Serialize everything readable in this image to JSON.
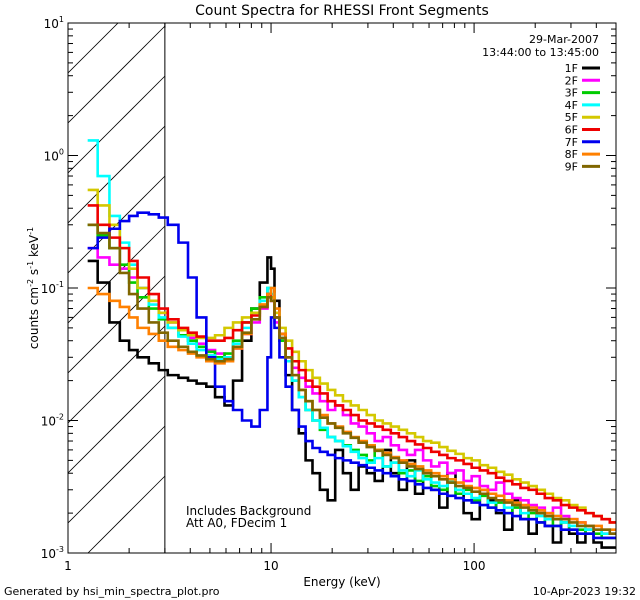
{
  "chart_data": {
    "type": "line",
    "title": "Count Spectra for RHESSI Front Segments",
    "xlabel": "Energy (keV)",
    "ylabel_parts": [
      "counts cm",
      "-2",
      " s",
      "-1",
      " keV",
      "-1"
    ],
    "xscale": "log",
    "yscale": "log",
    "xlim": [
      1,
      500
    ],
    "ylim": [
      0.001,
      10
    ],
    "x_ticks": [
      {
        "value": 1,
        "label": "1"
      },
      {
        "value": 10,
        "label": "10"
      },
      {
        "value": 100,
        "label": "100"
      }
    ],
    "y_ticks": [
      {
        "value": 10,
        "base": "10",
        "exp": "1"
      },
      {
        "value": 1,
        "base": "10",
        "exp": "0"
      },
      {
        "value": 0.1,
        "base": "10",
        "exp": "-1"
      },
      {
        "value": 0.01,
        "base": "10",
        "exp": "-2"
      },
      {
        "value": 0.001,
        "base": "10",
        "exp": "-3"
      }
    ],
    "date": "29-Mar-2007",
    "time_range": "13:44:00 to 13:45:00",
    "excluded_region_max_kev": 3,
    "annotations": [
      "Includes Background",
      "Att A0, FDecim 1"
    ],
    "energy_edges": [
      1.25,
      1.4,
      1.6,
      1.8,
      2.0,
      2.2,
      2.5,
      2.8,
      3.1,
      3.5,
      3.9,
      4.3,
      4.8,
      5.3,
      5.9,
      6.5,
      7.2,
      8.0,
      8.8,
      9.6,
      10.0,
      10.4,
      11.0,
      11.8,
      12.7,
      13.7,
      14.8,
      16.0,
      17.4,
      19.0,
      20.7,
      22.6,
      24.7,
      27.0,
      29.6,
      32.4,
      35.5,
      38.9,
      42.6,
      46.7,
      51.2,
      56.1,
      61.5,
      67.4,
      73.9,
      81.0,
      88.8,
      97.3,
      106.7,
      117.0,
      128.3,
      140.7,
      154.3,
      169.2,
      185.5,
      203.4,
      223.0,
      244.5,
      268.1,
      294.0,
      322.4,
      353.5,
      387.6,
      425.0,
      466.0,
      511.0
    ],
    "series": [
      {
        "name": "1F",
        "color": "#000000",
        "values": [
          0.16,
          0.11,
          0.055,
          0.04,
          0.034,
          0.03,
          0.027,
          0.024,
          0.022,
          0.021,
          0.02,
          0.019,
          0.018,
          0.015,
          0.013,
          0.02,
          0.04,
          0.07,
          0.11,
          0.17,
          0.14,
          0.08,
          0.045,
          0.022,
          0.012,
          0.008,
          0.005,
          0.004,
          0.003,
          0.0025,
          0.006,
          0.004,
          0.003,
          0.0045,
          0.004,
          0.0035,
          0.006,
          0.004,
          0.003,
          0.005,
          0.0028,
          0.004,
          0.003,
          0.0022,
          0.004,
          0.003,
          0.002,
          0.0018,
          0.003,
          0.0025,
          0.002,
          0.0015,
          0.0025,
          0.0018,
          0.0014,
          0.002,
          0.0016,
          0.0012,
          0.0018,
          0.0014,
          0.0012,
          0.0015,
          0.0012,
          0.0011,
          0.0011
        ]
      },
      {
        "name": "2F",
        "color": "#ff00ff",
        "values": [
          0.2,
          0.17,
          0.15,
          0.14,
          0.12,
          0.1,
          0.08,
          0.065,
          0.055,
          0.048,
          0.042,
          0.038,
          0.034,
          0.032,
          0.03,
          0.035,
          0.045,
          0.055,
          0.07,
          0.09,
          0.08,
          0.055,
          0.04,
          0.03,
          0.025,
          0.021,
          0.018,
          0.016,
          0.014,
          0.012,
          0.013,
          0.011,
          0.0095,
          0.009,
          0.008,
          0.007,
          0.0075,
          0.0065,
          0.006,
          0.0055,
          0.006,
          0.005,
          0.0045,
          0.0048,
          0.004,
          0.0042,
          0.0035,
          0.0038,
          0.0032,
          0.003,
          0.0034,
          0.0028,
          0.0026,
          0.0025,
          0.0023,
          0.0022,
          0.002,
          0.0022,
          0.0019,
          0.0018,
          0.0017,
          0.0016,
          0.0015,
          0.0014,
          0.0014
        ]
      },
      {
        "name": "3F",
        "color": "#00cc00",
        "values": [
          0.3,
          0.25,
          0.2,
          0.15,
          0.11,
          0.085,
          0.07,
          0.058,
          0.05,
          0.044,
          0.04,
          0.036,
          0.033,
          0.03,
          0.032,
          0.04,
          0.055,
          0.07,
          0.085,
          0.1,
          0.085,
          0.06,
          0.04,
          0.028,
          0.02,
          0.015,
          0.012,
          0.01,
          0.0085,
          0.0075,
          0.007,
          0.0065,
          0.006,
          0.0055,
          0.005,
          0.006,
          0.0045,
          0.0048,
          0.004,
          0.0042,
          0.0035,
          0.0038,
          0.0032,
          0.003,
          0.0034,
          0.0028,
          0.003,
          0.0025,
          0.0027,
          0.0022,
          0.0024,
          0.002,
          0.0022,
          0.0018,
          0.002,
          0.0017,
          0.0018,
          0.0016,
          0.0017,
          0.0015,
          0.0015,
          0.0014,
          0.0014,
          0.0013,
          0.0013
        ]
      },
      {
        "name": "4F",
        "color": "#00ffff",
        "values": [
          1.3,
          0.7,
          0.35,
          0.22,
          0.15,
          0.1,
          0.075,
          0.06,
          0.05,
          0.043,
          0.038,
          0.034,
          0.031,
          0.029,
          0.03,
          0.038,
          0.05,
          0.065,
          0.08,
          0.1,
          0.09,
          0.065,
          0.042,
          0.028,
          0.02,
          0.015,
          0.012,
          0.01,
          0.0088,
          0.0075,
          0.007,
          0.0064,
          0.0058,
          0.0052,
          0.0048,
          0.0052,
          0.0045,
          0.0048,
          0.0042,
          0.0038,
          0.0042,
          0.0036,
          0.0034,
          0.0032,
          0.0035,
          0.003,
          0.0028,
          0.0026,
          0.0028,
          0.0024,
          0.0025,
          0.0022,
          0.0024,
          0.002,
          0.0021,
          0.0019,
          0.0018,
          0.0019,
          0.0017,
          0.0016,
          0.0016,
          0.0015,
          0.0015,
          0.0014,
          0.0014
        ]
      },
      {
        "name": "5F",
        "color": "#d4c800",
        "values": [
          0.55,
          0.42,
          0.3,
          0.2,
          0.14,
          0.1,
          0.08,
          0.065,
          0.055,
          0.048,
          0.044,
          0.042,
          0.042,
          0.044,
          0.05,
          0.055,
          0.06,
          0.065,
          0.075,
          0.09,
          0.085,
          0.065,
          0.05,
          0.04,
          0.033,
          0.028,
          0.024,
          0.021,
          0.019,
          0.017,
          0.0155,
          0.014,
          0.013,
          0.012,
          0.011,
          0.01,
          0.0095,
          0.009,
          0.0085,
          0.008,
          0.0075,
          0.007,
          0.0068,
          0.0063,
          0.0059,
          0.0056,
          0.0052,
          0.005,
          0.0046,
          0.0044,
          0.0041,
          0.0039,
          0.0036,
          0.0034,
          0.0032,
          0.003,
          0.0028,
          0.0026,
          0.0025,
          0.0023,
          0.0022,
          0.002,
          0.0019,
          0.0018,
          0.0017
        ]
      },
      {
        "name": "6F",
        "color": "#ee0000",
        "values": [
          0.42,
          0.3,
          0.24,
          0.2,
          0.16,
          0.12,
          0.09,
          0.07,
          0.058,
          0.05,
          0.046,
          0.043,
          0.04,
          0.04,
          0.042,
          0.048,
          0.055,
          0.062,
          0.072,
          0.09,
          0.08,
          0.06,
          0.045,
          0.035,
          0.028,
          0.024,
          0.02,
          0.018,
          0.016,
          0.014,
          0.013,
          0.012,
          0.011,
          0.01,
          0.0095,
          0.009,
          0.0085,
          0.008,
          0.0075,
          0.007,
          0.0066,
          0.0062,
          0.0058,
          0.0055,
          0.0052,
          0.005,
          0.0047,
          0.0044,
          0.0042,
          0.004,
          0.0037,
          0.0035,
          0.0033,
          0.0031,
          0.003,
          0.0028,
          0.0026,
          0.0025,
          0.0023,
          0.0022,
          0.0021,
          0.002,
          0.0019,
          0.0018,
          0.0017
        ]
      },
      {
        "name": "7F",
        "color": "#0000ee",
        "values": [
          0.2,
          0.24,
          0.28,
          0.32,
          0.35,
          0.37,
          0.36,
          0.34,
          0.3,
          0.22,
          0.12,
          0.06,
          0.03,
          0.018,
          0.014,
          0.012,
          0.01,
          0.009,
          0.012,
          0.03,
          0.06,
          0.05,
          0.03,
          0.018,
          0.012,
          0.009,
          0.007,
          0.0062,
          0.0058,
          0.0055,
          0.0052,
          0.005,
          0.0048,
          0.0046,
          0.0044,
          0.0042,
          0.004,
          0.0038,
          0.0036,
          0.0035,
          0.0033,
          0.0031,
          0.003,
          0.0028,
          0.0027,
          0.0026,
          0.0025,
          0.0024,
          0.0023,
          0.0022,
          0.0021,
          0.002,
          0.0019,
          0.0018,
          0.0018,
          0.0017,
          0.0016,
          0.0016,
          0.0015,
          0.0015,
          0.0014,
          0.0014,
          0.0013,
          0.0013,
          0.0013
        ]
      },
      {
        "name": "8F",
        "color": "#ff8000",
        "values": [
          0.1,
          0.09,
          0.08,
          0.072,
          0.06,
          0.05,
          0.045,
          0.04,
          0.036,
          0.034,
          0.032,
          0.03,
          0.028,
          0.027,
          0.028,
          0.035,
          0.045,
          0.058,
          0.075,
          0.09,
          0.1,
          0.07,
          0.045,
          0.03,
          0.022,
          0.017,
          0.014,
          0.012,
          0.011,
          0.0095,
          0.009,
          0.0082,
          0.0075,
          0.007,
          0.0065,
          0.006,
          0.0057,
          0.0053,
          0.005,
          0.0047,
          0.0045,
          0.0042,
          0.004,
          0.0038,
          0.0036,
          0.0034,
          0.0032,
          0.0031,
          0.003,
          0.0028,
          0.0027,
          0.0025,
          0.0024,
          0.0023,
          0.0022,
          0.0021,
          0.002,
          0.0019,
          0.0018,
          0.0018,
          0.0017,
          0.0016,
          0.0016,
          0.0015,
          0.0015
        ]
      },
      {
        "name": "9F",
        "color": "#806600",
        "values": [
          0.3,
          0.26,
          0.2,
          0.13,
          0.09,
          0.07,
          0.055,
          0.046,
          0.04,
          0.036,
          0.033,
          0.031,
          0.029,
          0.028,
          0.029,
          0.036,
          0.046,
          0.058,
          0.072,
          0.085,
          0.08,
          0.06,
          0.042,
          0.03,
          0.022,
          0.017,
          0.014,
          0.012,
          0.0105,
          0.0095,
          0.0088,
          0.008,
          0.0074,
          0.0068,
          0.0063,
          0.0059,
          0.0055,
          0.0052,
          0.0048,
          0.0045,
          0.0043,
          0.004,
          0.0038,
          0.0036,
          0.0034,
          0.0032,
          0.0031,
          0.0029,
          0.0028,
          0.0026,
          0.0025,
          0.0024,
          0.0023,
          0.0022,
          0.0021,
          0.002,
          0.0019,
          0.0018,
          0.0018,
          0.0017,
          0.0016,
          0.0016,
          0.0015,
          0.0015,
          0.0014
        ]
      }
    ]
  },
  "footer": {
    "generator": "Generated by hsi_min_spectra_plot.pro",
    "timestamp": "10-Apr-2023 19:32"
  }
}
